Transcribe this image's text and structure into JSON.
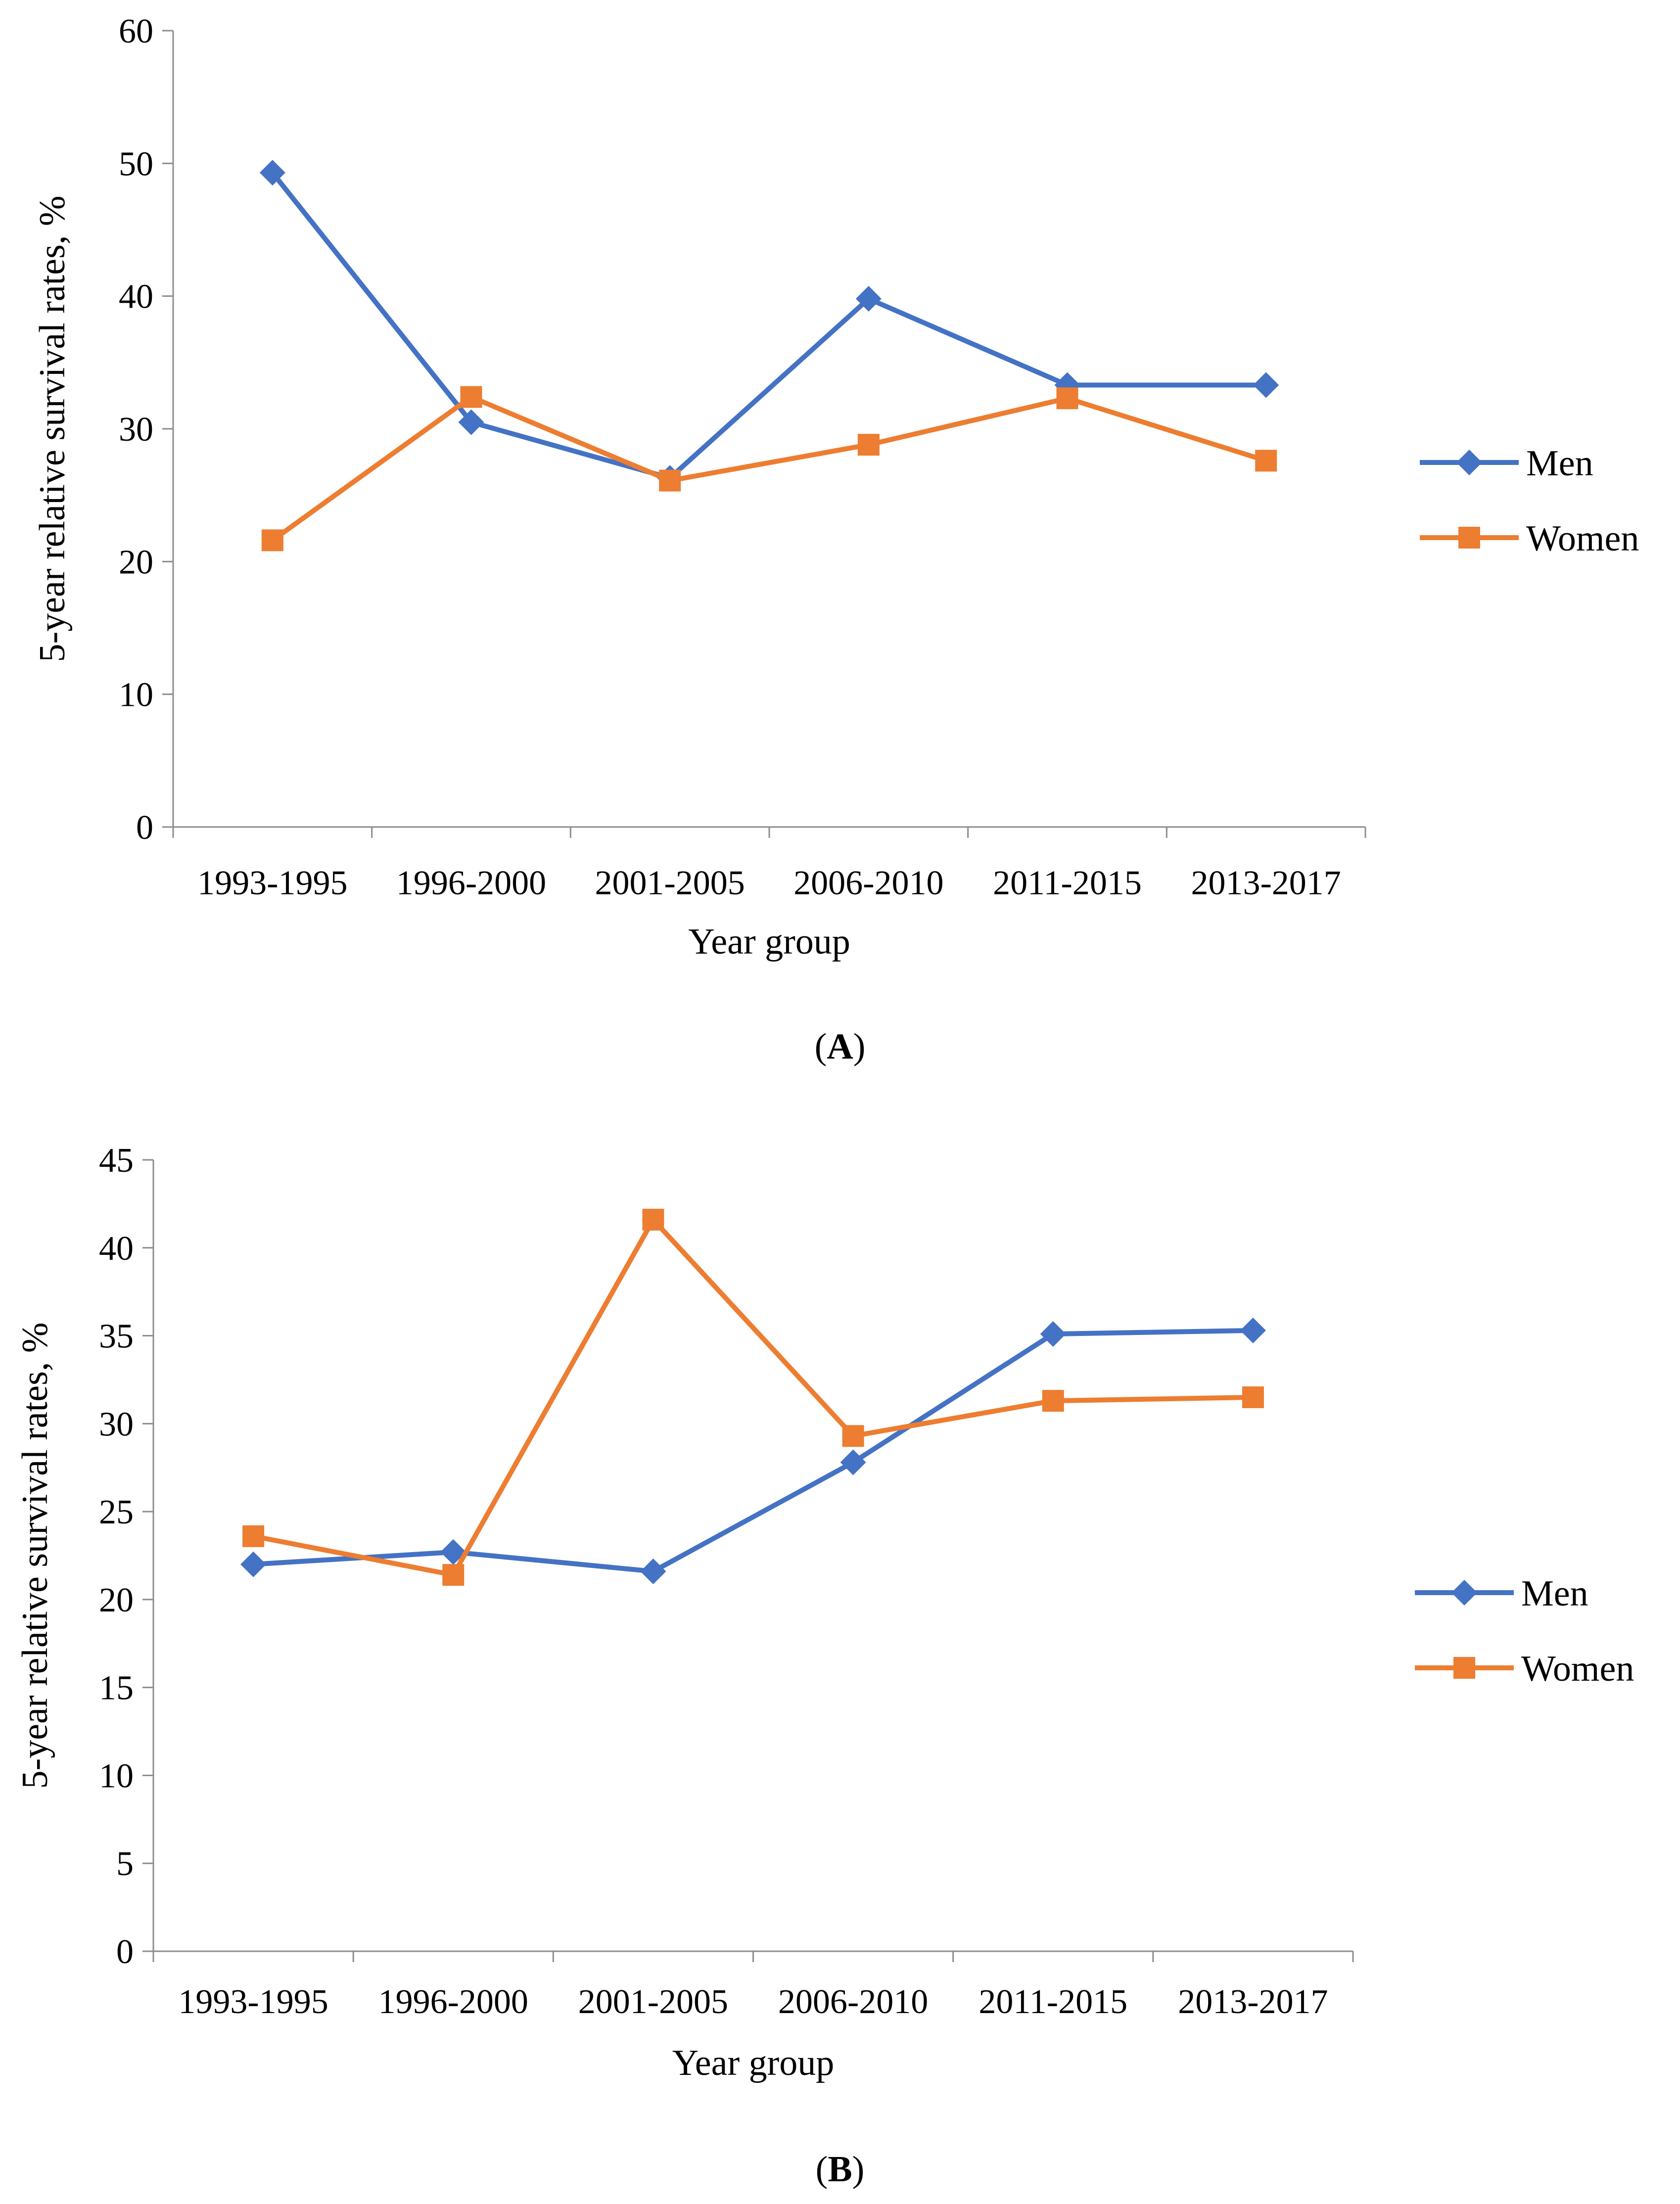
{
  "chart_data": [
    {
      "type": "line",
      "panel_label": "A",
      "categories": [
        "1993-1995",
        "1996-2000",
        "2001-2005",
        "2006-2010",
        "2011-2015",
        "2013-2017"
      ],
      "xlabel": "Year group",
      "ylabel": "5-year relative survival rates, %",
      "ylim": [
        0,
        60
      ],
      "yticks": [
        0,
        10,
        20,
        30,
        40,
        50,
        60
      ],
      "grid": false,
      "legend_position": "right",
      "series": [
        {
          "name": "Men",
          "color": "#4472C4",
          "marker": "diamond",
          "values": [
            49.3,
            30.5,
            26.3,
            39.8,
            33.3,
            33.3
          ]
        },
        {
          "name": "Women",
          "color": "#ED7D31",
          "marker": "square",
          "values": [
            21.6,
            32.4,
            26.1,
            28.8,
            32.3,
            27.6
          ]
        }
      ]
    },
    {
      "type": "line",
      "panel_label": "B",
      "categories": [
        "1993-1995",
        "1996-2000",
        "2001-2005",
        "2006-2010",
        "2011-2015",
        "2013-2017"
      ],
      "xlabel": "Year group",
      "ylabel": "5-year relative survival rates, %",
      "ylim": [
        0,
        45
      ],
      "yticks": [
        0,
        5,
        10,
        15,
        20,
        25,
        30,
        35,
        40,
        45
      ],
      "grid": false,
      "legend_position": "right",
      "series": [
        {
          "name": "Men",
          "color": "#4472C4",
          "marker": "diamond",
          "values": [
            22.0,
            22.7,
            21.6,
            27.8,
            35.1,
            35.3
          ]
        },
        {
          "name": "Women",
          "color": "#ED7D31",
          "marker": "square",
          "values": [
            23.6,
            21.4,
            41.6,
            29.3,
            31.3,
            31.5
          ]
        }
      ]
    }
  ]
}
